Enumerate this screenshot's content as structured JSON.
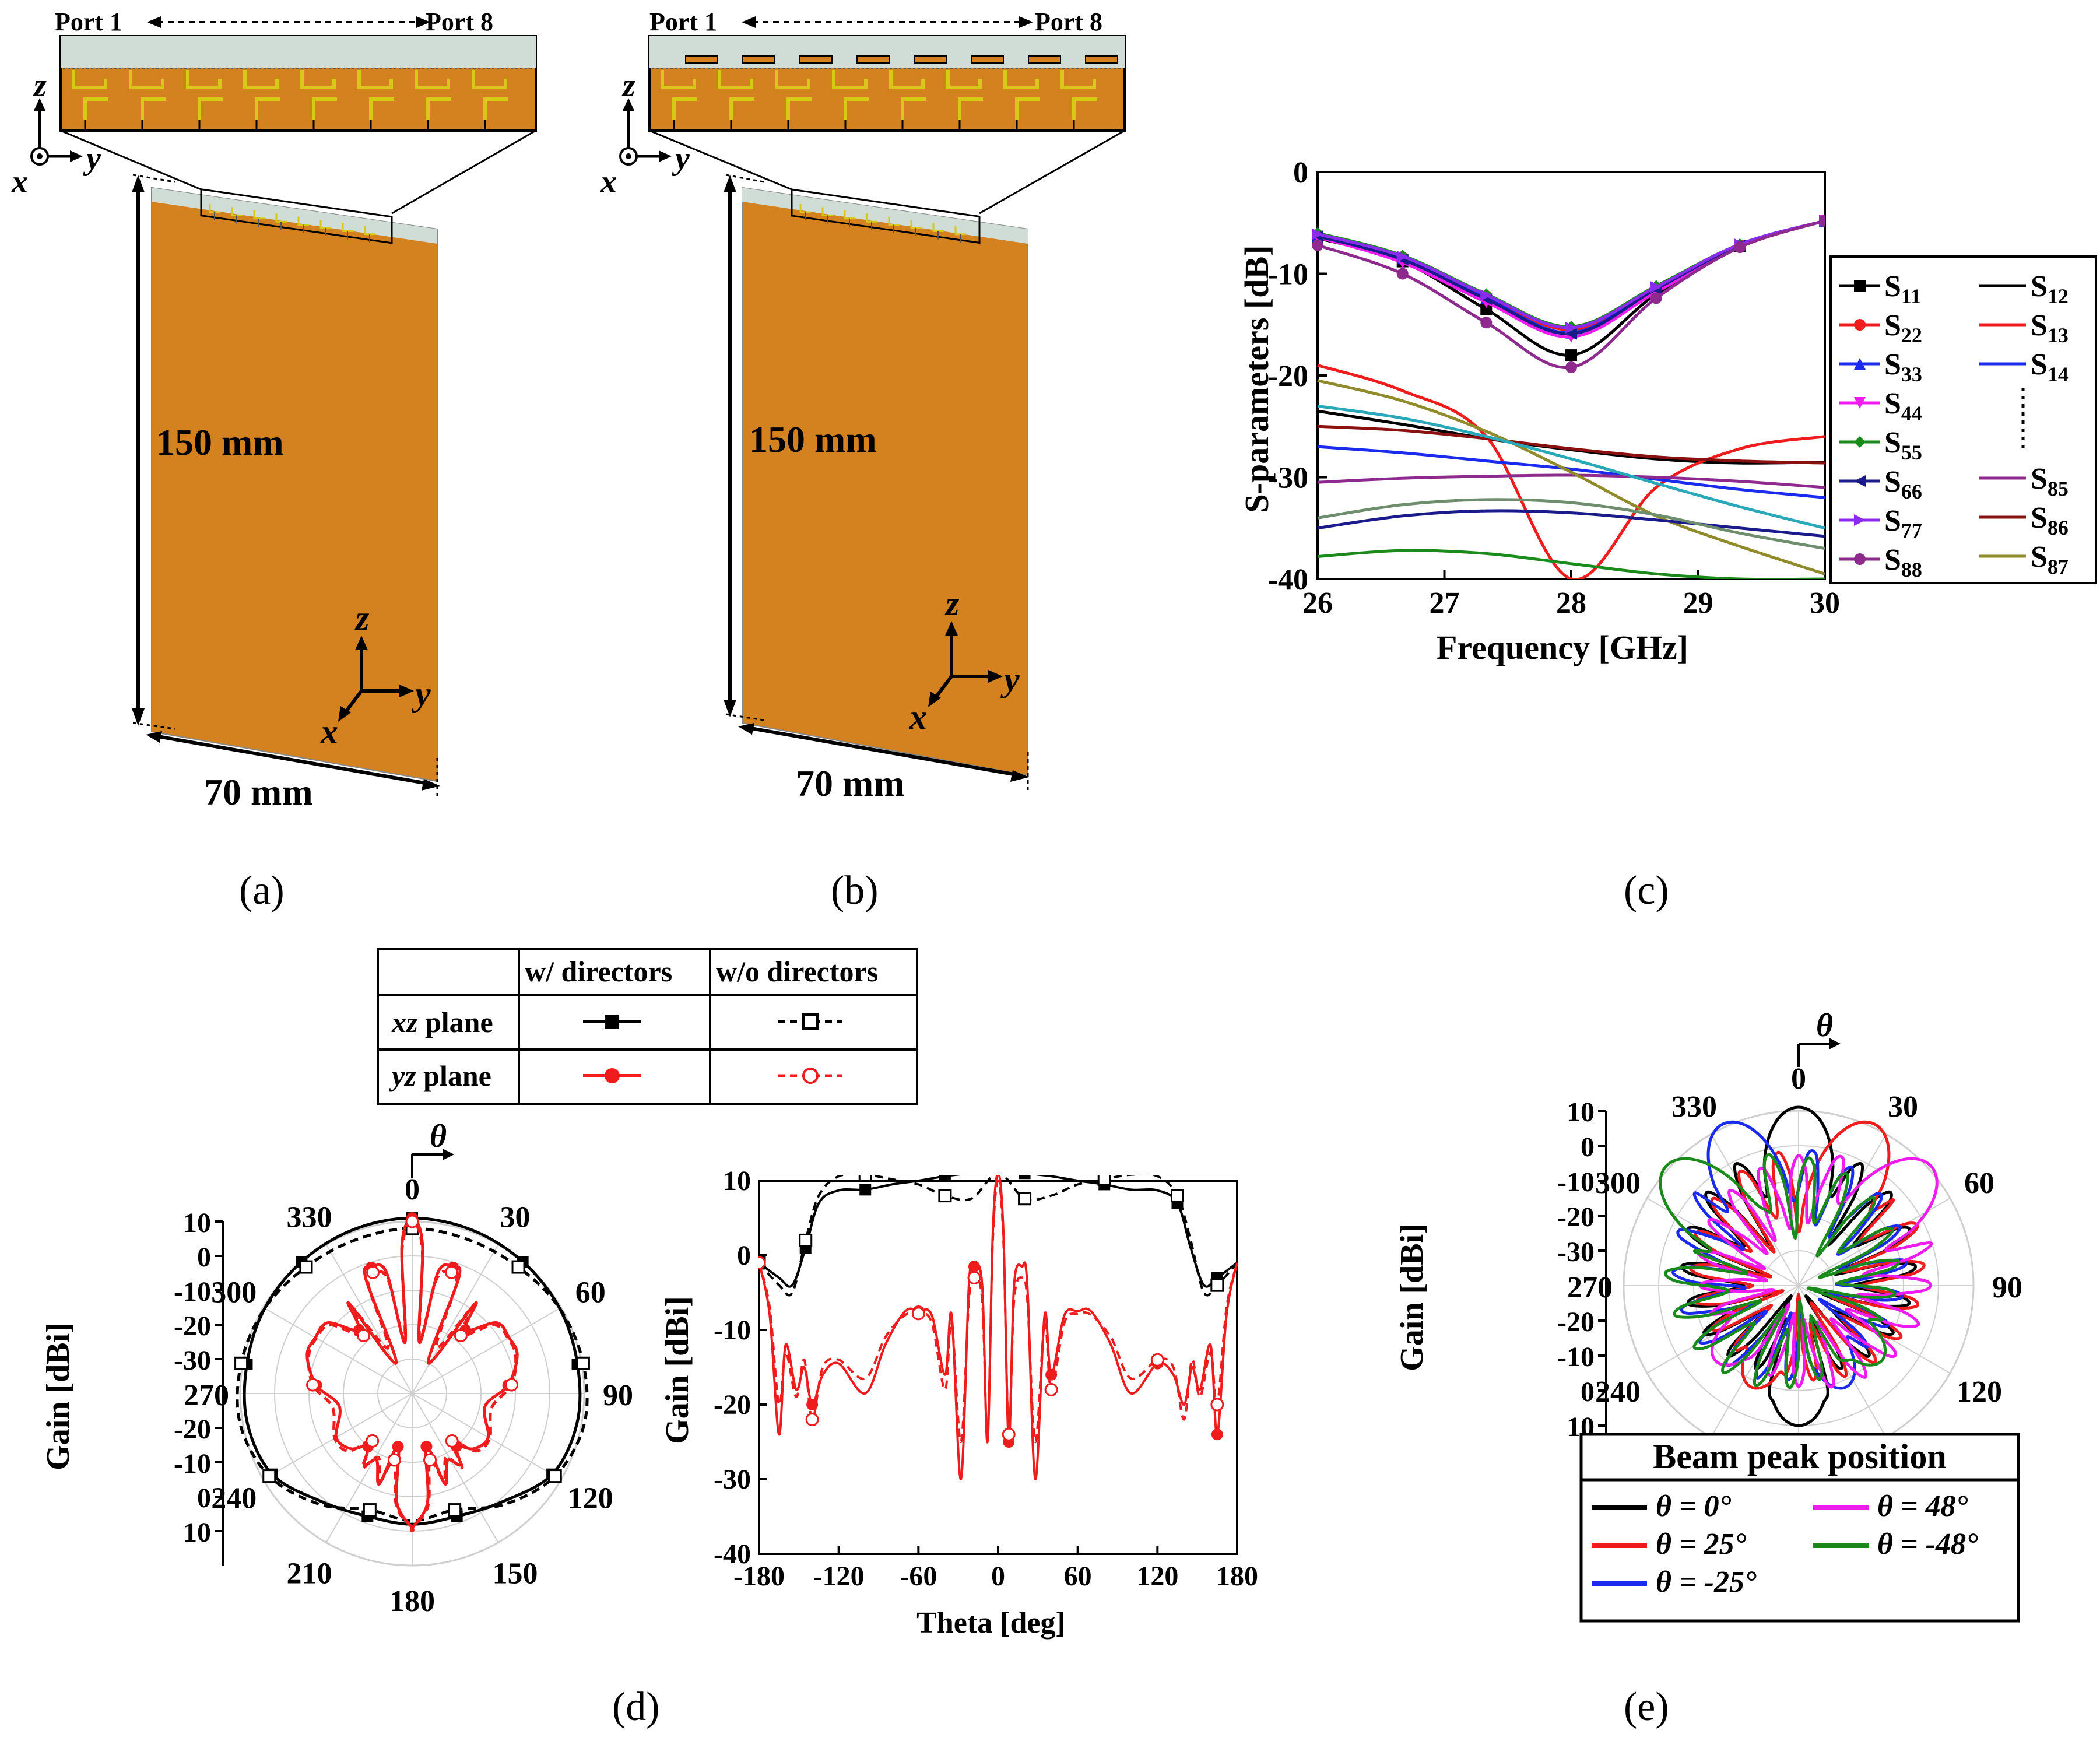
{
  "colors": {
    "copper": "#D4811F",
    "substrate": "#CFDDD6",
    "feed": "#D8C81A",
    "black": "#000000",
    "red": "#EE1C1C",
    "blue": "#1A2BEE",
    "magenta": "#EE1CEE",
    "green": "#1A8A1A",
    "darkred": "#8B1010",
    "olive": "#8F8A2A",
    "violet": "#8A2BEE",
    "purple": "#8E2A8E",
    "cyan": "#28A8B8",
    "lightgray": "#CFCFCF"
  },
  "panel_labels": {
    "a": "(a)",
    "b": "(b)",
    "c": "(c)",
    "d": "(d)",
    "e": "(e)"
  },
  "panel_a": {
    "port_left": "Port 1",
    "port_right": "Port 8",
    "axis_z": "z",
    "axis_y": "y",
    "axis_x": "x",
    "height_label": "150 mm",
    "width_label": "70 mm"
  },
  "panel_b": {
    "port_left": "Port 1",
    "port_right": "Port 8",
    "axis_z": "z",
    "axis_y": "y",
    "axis_x": "x",
    "height_label": "150 mm",
    "width_label": "70 mm"
  },
  "panel_d_legend": {
    "col1": "w/ directors",
    "col2": "w/o directors",
    "row1_italic": "xz",
    "row1_rest": " plane",
    "row2_italic": "yz",
    "row2_rest": " plane"
  },
  "panel_d_polar": {
    "ylabel": "Gain [dBi]",
    "theta_symbol": "θ",
    "angle_labels": [
      "0",
      "30",
      "60",
      "90",
      "120",
      "150",
      "180",
      "210",
      "240",
      "270",
      "300",
      "330"
    ],
    "radial_ticks_upper": [
      "10",
      "0",
      "-10",
      "-20",
      "-30"
    ],
    "radial_ticks_lower": [
      "-20",
      "-10",
      "0",
      "10"
    ]
  },
  "panel_e": {
    "ylabel": "Gain [dBi]",
    "theta_symbol": "θ",
    "angle_labels": [
      "0",
      "30",
      "60",
      "90",
      "120",
      "240",
      "270",
      "300",
      "330"
    ],
    "radial_ticks_upper": [
      "10",
      "0",
      "-10",
      "-20",
      "-30"
    ],
    "radial_ticks_lower": [
      "-20",
      "-10",
      "0",
      "10"
    ],
    "legend_title": "Beam peak position",
    "legend_items": [
      {
        "label": "θ = 0°",
        "color": "#000000"
      },
      {
        "label": "θ = 48°",
        "color": "#EE1CEE"
      },
      {
        "label": "θ = 25°",
        "color": "#EE1C1C"
      },
      {
        "label": "θ = -48°",
        "color": "#1A8A1A"
      },
      {
        "label": "θ = -25°",
        "color": "#1A2BEE"
      }
    ]
  },
  "chart_data": [
    {
      "id": "panel_c",
      "type": "line",
      "xlabel": "Frequency [GHz]",
      "ylabel": "S-parameters [dB]",
      "xlim": [
        26,
        30
      ],
      "ylim": [
        -40,
        0
      ],
      "x_ticks": [
        "26",
        "27",
        "28",
        "29",
        "30"
      ],
      "y_ticks": [
        "0",
        "-10",
        "-20",
        "-30",
        "-40"
      ],
      "x": [
        26,
        26.67,
        27.33,
        28,
        28.67,
        29.33,
        30
      ],
      "series": [
        {
          "name": "S11",
          "sub": "11",
          "color": "#000000",
          "marker": "square",
          "values": [
            -6.5,
            -8.8,
            -13.5,
            -18,
            -12,
            -7.3,
            -4.8
          ]
        },
        {
          "name": "S22",
          "sub": "22",
          "color": "#EE1C1C",
          "marker": "circle",
          "values": [
            -6.2,
            -8.4,
            -12.2,
            -15.5,
            -11.5,
            -7.2,
            -4.8
          ]
        },
        {
          "name": "S33",
          "sub": "33",
          "color": "#1A2BEE",
          "marker": "triangle-up",
          "values": [
            -6.3,
            -8.5,
            -12.4,
            -15.8,
            -11.4,
            -7.2,
            -4.8
          ]
        },
        {
          "name": "S44",
          "sub": "44",
          "color": "#EE1CEE",
          "marker": "triangle-down",
          "values": [
            -6.4,
            -8.9,
            -12.8,
            -16.2,
            -11.8,
            -7.3,
            -4.8
          ]
        },
        {
          "name": "S55",
          "sub": "55",
          "color": "#1A8A1A",
          "marker": "diamond",
          "values": [
            -6.0,
            -8.2,
            -12.0,
            -15.2,
            -11.2,
            -7.1,
            -4.8
          ]
        },
        {
          "name": "S66",
          "sub": "66",
          "color": "#1A1A8A",
          "marker": "triangle-left",
          "values": [
            -6.3,
            -8.6,
            -12.5,
            -15.9,
            -11.5,
            -7.2,
            -4.8
          ]
        },
        {
          "name": "S77",
          "sub": "77",
          "color": "#8A2BEE",
          "marker": "triangle-right",
          "values": [
            -6.1,
            -8.3,
            -12.1,
            -15.3,
            -11.3,
            -7.1,
            -4.8
          ]
        },
        {
          "name": "S88",
          "sub": "88",
          "color": "#8E2A8E",
          "marker": "hexagon",
          "values": [
            -7.2,
            -10,
            -14.8,
            -19.2,
            -12.4,
            -7.4,
            -4.8
          ]
        },
        {
          "name": "S12",
          "sub": "12",
          "color": "#000000",
          "marker": "none",
          "values": [
            -23.5,
            -24.8,
            -26.2,
            -27.3,
            -28.2,
            -28.6,
            -28.5
          ]
        },
        {
          "name": "S13",
          "sub": "13",
          "color": "#EE1C1C",
          "marker": "none",
          "values": [
            -19,
            -21.5,
            -26,
            -40,
            -31,
            -27.2,
            -26
          ]
        },
        {
          "name": "S14",
          "sub": "14",
          "color": "#1A2BEE",
          "marker": "none",
          "values": [
            -27,
            -27.6,
            -28.4,
            -29.2,
            -30.2,
            -31.2,
            -32
          ]
        },
        {
          "name": "S85",
          "sub": "85",
          "color": "#8E2A8E",
          "marker": "none",
          "values": [
            -30.5,
            -30.1,
            -29.9,
            -29.8,
            -30,
            -30.4,
            -31
          ]
        },
        {
          "name": "S86",
          "sub": "86",
          "color": "#8B1010",
          "marker": "none",
          "values": [
            -25,
            -25.4,
            -26.2,
            -27.2,
            -28,
            -28.4,
            -28.6
          ]
        },
        {
          "name": "S87",
          "sub": "87",
          "color": "#8F8A2A",
          "marker": "none",
          "values": [
            -20.5,
            -22.5,
            -25.5,
            -29.5,
            -33.8,
            -36.8,
            -39.5
          ]
        },
        {
          "name": "",
          "color": "#28A8B8",
          "marker": "none",
          "values": [
            -23,
            -24.2,
            -26,
            -28.2,
            -30.6,
            -32.9,
            -35
          ]
        },
        {
          "name": "",
          "color": "#1A8A1A",
          "marker": "none",
          "values": [
            -37.8,
            -37.2,
            -37.5,
            -38.5,
            -39.5,
            -40,
            -40
          ]
        },
        {
          "name": "",
          "color": "#1A1A8A",
          "marker": "none",
          "values": [
            -35,
            -33.8,
            -33.3,
            -33.5,
            -34.2,
            -35,
            -35.8
          ]
        },
        {
          "name": "",
          "color": "#6E8E6E",
          "marker": "none",
          "values": [
            -34,
            -32.7,
            -32.2,
            -32.5,
            -33.7,
            -35.5,
            -37
          ]
        }
      ]
    },
    {
      "id": "panel_d_cartesian",
      "type": "line",
      "xlabel": "Theta [deg]",
      "ylabel": "Gain [dBi]",
      "xlim": [
        -180,
        180
      ],
      "ylim": [
        -40,
        10
      ],
      "x_ticks": [
        "-180",
        "-120",
        "-60",
        "0",
        "60",
        "120",
        "180"
      ],
      "y_ticks": [
        "10",
        "0",
        "-10",
        "-20",
        "-30",
        "-40"
      ],
      "series": [
        {
          "name": "xz w/ directors",
          "color": "#000000",
          "dash": "solid",
          "marker": "square-filled",
          "x": [
            -180,
            -165,
            -155,
            -145,
            -135,
            -120,
            -100,
            -80,
            -60,
            -40,
            -20,
            0,
            20,
            40,
            60,
            80,
            100,
            120,
            135,
            145,
            155,
            165,
            180
          ],
          "values": [
            -1,
            -3,
            -4,
            1,
            7,
            8.7,
            8.8,
            9.5,
            10,
            10.6,
            11,
            11.2,
            11,
            10.6,
            10,
            9.5,
            8.8,
            8.7,
            7,
            1,
            -4,
            -3,
            -1
          ]
        },
        {
          "name": "xz w/o directors",
          "color": "#000000",
          "dash": "dash",
          "marker": "square-open",
          "x": [
            -180,
            -165,
            -155,
            -145,
            -135,
            -120,
            -100,
            -80,
            -60,
            -40,
            -20,
            0,
            20,
            40,
            60,
            80,
            100,
            120,
            135,
            145,
            155,
            165,
            180
          ],
          "values": [
            -1,
            -4,
            -5,
            2,
            8,
            10.6,
            10.8,
            10.2,
            9.5,
            8,
            7.6,
            11,
            7.6,
            8,
            9.5,
            10.2,
            10.8,
            10.6,
            8,
            2,
            -5,
            -4,
            -1
          ]
        },
        {
          "name": "yz w/ directors",
          "color": "#EE1C1C",
          "dash": "solid",
          "marker": "circle-filled",
          "x": [
            -180,
            -172,
            -165,
            -160,
            -152,
            -146,
            -140,
            -132,
            -120,
            -100,
            -85,
            -70,
            -60,
            -50,
            -40,
            -35,
            -28,
            -22,
            -18,
            -12,
            -8,
            -4,
            0,
            4,
            8,
            12,
            18,
            22,
            28,
            35,
            40,
            50,
            60,
            70,
            85,
            100,
            120,
            132,
            140,
            146,
            152,
            160,
            165,
            172,
            180
          ],
          "values": [
            -1,
            -8,
            -24,
            -12,
            -18,
            -15,
            -20,
            -16,
            -14.5,
            -18.5,
            -12,
            -7.5,
            -7.5,
            -8,
            -16,
            -8,
            -30,
            -4,
            -1.5,
            -4,
            -25,
            3,
            11,
            3,
            -25,
            -4,
            -1.5,
            -4,
            -30,
            -8,
            -16,
            -8,
            -7.5,
            -7.5,
            -12,
            -18.5,
            -14.5,
            -16,
            -20,
            -15,
            -18,
            -12,
            -24,
            -8,
            -1
          ]
        },
        {
          "name": "yz w/o directors",
          "color": "#EE1C1C",
          "dash": "dash",
          "marker": "circle-open",
          "x": [
            -180,
            -172,
            -165,
            -160,
            -152,
            -146,
            -140,
            -132,
            -120,
            -100,
            -85,
            -70,
            -60,
            -50,
            -40,
            -35,
            -28,
            -22,
            -18,
            -12,
            -8,
            -4,
            0,
            4,
            8,
            12,
            18,
            22,
            28,
            35,
            40,
            50,
            60,
            70,
            85,
            100,
            120,
            132,
            140,
            146,
            152,
            160,
            165,
            172,
            180
          ],
          "values": [
            -1,
            -7,
            -20,
            -13,
            -19,
            -14,
            -22,
            -15,
            -14,
            -16.5,
            -11,
            -8,
            -7.8,
            -9,
            -18,
            -9,
            -25,
            -6,
            -3,
            -6,
            -24,
            2,
            10,
            2,
            -24,
            -6,
            -3,
            -6,
            -25,
            -9,
            -18,
            -9,
            -7.8,
            -8,
            -11,
            -16.5,
            -14,
            -15,
            -22,
            -14,
            -19,
            -13,
            -20,
            -7,
            -1
          ]
        }
      ]
    },
    {
      "id": "panel_d_polar",
      "type": "line",
      "coordinate": "polar",
      "rlim": [
        -40,
        10
      ],
      "series": [
        {
          "name": "xz w/ directors",
          "color": "#000000",
          "dash": "solid",
          "theta": [
            0,
            20,
            40,
            60,
            80,
            100,
            120,
            140,
            160,
            180,
            200,
            220,
            240,
            260,
            280,
            300,
            320,
            340
          ],
          "values": [
            11,
            10.6,
            10,
            9.5,
            8.8,
            8.7,
            7,
            1,
            -2,
            -2,
            -2,
            1,
            7,
            8.7,
            8.8,
            9.5,
            10,
            10.6
          ]
        },
        {
          "name": "xz w/o directors",
          "color": "#000000",
          "dash": "dash",
          "theta": [
            0,
            20,
            40,
            60,
            80,
            100,
            120,
            140,
            160,
            180,
            200,
            220,
            240,
            260,
            280,
            300,
            320,
            340
          ],
          "values": [
            8,
            7.6,
            8,
            9.5,
            10.5,
            10.8,
            8,
            2,
            -4,
            -3,
            -4,
            2,
            8,
            10.8,
            10.5,
            9.5,
            8,
            7.6
          ]
        }
      ]
    },
    {
      "id": "panel_e_polar",
      "type": "line",
      "coordinate": "polar",
      "rlim": [
        -40,
        10
      ],
      "series": [
        {
          "name": "θ = 0°",
          "color": "#000000",
          "peak_theta": 0
        },
        {
          "name": "θ = 25°",
          "color": "#EE1C1C",
          "peak_theta": 25
        },
        {
          "name": "θ = -25°",
          "color": "#1A2BEE",
          "peak_theta": -25
        },
        {
          "name": "θ = 48°",
          "color": "#EE1CEE",
          "peak_theta": 48
        },
        {
          "name": "θ = -48°",
          "color": "#1A8A1A",
          "peak_theta": -48
        }
      ]
    }
  ]
}
